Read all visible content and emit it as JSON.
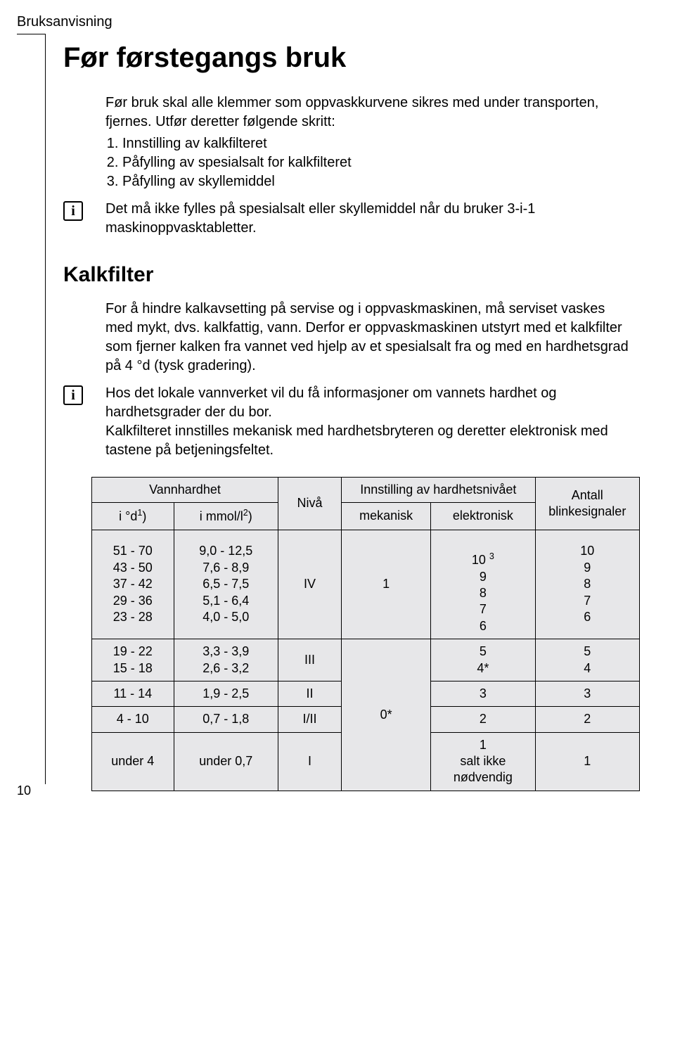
{
  "header": {
    "label": "Bruksanvisning"
  },
  "page_title": "Før førstegangs bruk",
  "intro": "Før bruk skal alle klemmer som oppvaskkurvene sikres med under transporten, fjernes. Utfør deretter følgende skritt:",
  "steps": [
    "Innstilling av kalkfilteret",
    "Påfylling av spesialsalt for kalkfilteret",
    "Påfylling av skyllemiddel"
  ],
  "info1": "Det må ikke fylles på spesialsalt eller skyllemiddel når du bruker 3-i-1 maskinoppvasktabletter.",
  "section2_title": "Kalkfilter",
  "para1": "For å hindre kalkavsetting på servise og i oppvaskmaskinen, må serviset vaskes med mykt, dvs. kalkfattig, vann. Derfor er oppvaskmaskinen utstyrt med et kalkfilter som fjerner kalken fra vannet ved hjelp av et spesialsalt fra og med en hardhetsgrad på 4 °d (tysk gradering).",
  "info2": "Hos det lokale vannverket vil du få informasjoner om vannets hardhet og hardhetsgrader der du bor.\nKalkfilteret innstilles mekanisk med hardhetsbryteren og deretter elektronisk med tastene på betjeningsfeltet.",
  "table": {
    "headers": {
      "vannhardhet": "Vannhardhet",
      "innstilling": "Innstilling av hardhetsnivået",
      "antall": "Antall blinkesignaler",
      "d": "i °d",
      "d_sup": "1",
      "d_close": ")",
      "mmol": "i mmol/l",
      "mmol_sup": "2",
      "mmol_close": ")",
      "niva": "Nivå",
      "mekanisk": "mekanisk",
      "elektronisk": "elektronisk"
    },
    "rows": [
      {
        "d": "51 - 70\n43 - 50\n37 - 42\n29 - 36\n23 - 28",
        "mmol": "9,0 - 12,5\n7,6 - 8,9\n6,5 - 7,5\n5,1 - 6,4\n4,0 - 5,0",
        "niva": "IV",
        "mek": "1",
        "elek_pre": "10 ",
        "elek_sup": "3",
        "elek_rest": "\n9\n8\n7\n6",
        "blink": "10\n9\n8\n7\n6"
      },
      {
        "d": "19 - 22\n15 - 18",
        "mmol": "3,3 - 3,9\n2,6 - 3,2",
        "niva": "III",
        "mek": "0*",
        "elek": "5\n4*",
        "blink": "5\n4"
      },
      {
        "d": "11 - 14",
        "mmol": "1,9 - 2,5",
        "niva": "II",
        "elek": "3",
        "blink": "3"
      },
      {
        "d": "4 - 10",
        "mmol": "0,7 - 1,8",
        "niva": "I/II",
        "elek": "2",
        "blink": "2"
      },
      {
        "d": "under 4",
        "mmol": "under 0,7",
        "niva": "I",
        "elek": "1\nsalt ikke nødvendig",
        "blink": "1"
      }
    ]
  },
  "page_number": "10",
  "info_glyph": "i"
}
